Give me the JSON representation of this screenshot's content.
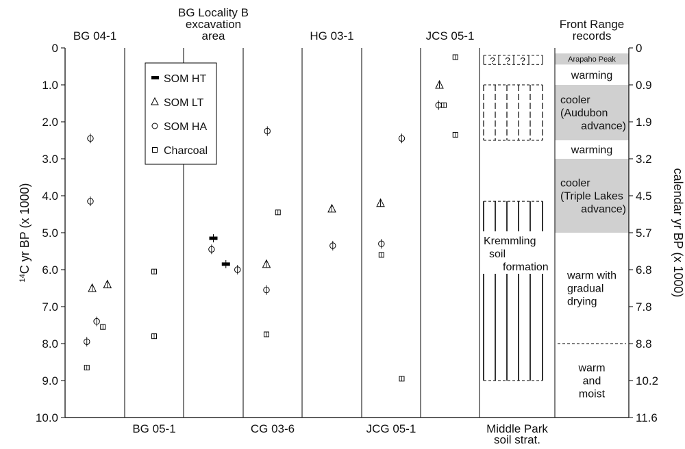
{
  "chart_data": {
    "type": "scatter",
    "ylabel_left": "14C yr BP (x 1000)",
    "ylabel_left_superscript": "14",
    "ylabel_left_main": "C yr BP (x 1000)",
    "ylabel_right": "calendar yr BP (x 1000)",
    "ylim": [
      0,
      10
    ],
    "y_inverted": true,
    "left_ticks": [
      "0",
      "1.0",
      "2.0",
      "3.0",
      "4.0",
      "5.0",
      "6.0",
      "7.0",
      "8.0",
      "9.0",
      "10.0"
    ],
    "right_ticks": [
      "0",
      "0.9",
      "1.9",
      "3.2",
      "4.5",
      "5.7",
      "6.8",
      "7.8",
      "8.8",
      "10.2",
      "11.6"
    ],
    "columns": [
      {
        "id": "bg04",
        "label": "BG 04-1",
        "label_position": "top"
      },
      {
        "id": "bg05",
        "label": "BG 05-1",
        "label_position": "bottom"
      },
      {
        "id": "bglocb",
        "label_lines": [
          "BG Locality B",
          "excavation",
          "area"
        ],
        "label_position": "top"
      },
      {
        "id": "cg03",
        "label": "CG 03-6",
        "label_position": "bottom"
      },
      {
        "id": "hg03",
        "label": "HG 03-1",
        "label_position": "top"
      },
      {
        "id": "jcg05",
        "label": "JCG 05-1",
        "label_position": "bottom"
      },
      {
        "id": "jcs05",
        "label": "JCS 05-1",
        "label_position": "top"
      },
      {
        "id": "middlepark",
        "label_lines": [
          "Middle Park",
          "soil strat."
        ],
        "label_position": "bottom"
      },
      {
        "id": "frontrange",
        "label_lines": [
          "Front Range",
          "records"
        ],
        "label_position": "top"
      }
    ],
    "legend": {
      "placement": "upper-left inside",
      "entries": [
        {
          "marker": "bar",
          "label": "SOM HT"
        },
        {
          "marker": "triangle",
          "label": "SOM LT"
        },
        {
          "marker": "circle",
          "label": "SOM HA"
        },
        {
          "marker": "square",
          "label": "Charcoal"
        }
      ]
    },
    "series": [
      {
        "name": "SOM HT",
        "marker": "bar",
        "points": [
          {
            "column": "bglocb",
            "offset": 0.0,
            "y": 5.15
          },
          {
            "column": "bglocb",
            "offset": 0.7,
            "y": 5.85
          }
        ]
      },
      {
        "name": "SOM LT",
        "marker": "triangle",
        "points": [
          {
            "column": "bg04",
            "offset": -0.15,
            "y": 6.5
          },
          {
            "column": "bg04",
            "offset": 0.7,
            "y": 6.4
          },
          {
            "column": "cg03",
            "offset": -0.35,
            "y": 5.85
          },
          {
            "column": "hg03",
            "offset": 0.0,
            "y": 4.35
          },
          {
            "column": "jcg05",
            "offset": -0.6,
            "y": 4.2
          },
          {
            "column": "jcs05",
            "offset": -0.6,
            "y": 1.0
          }
        ]
      },
      {
        "name": "SOM HA",
        "marker": "circle",
        "points": [
          {
            "column": "bg04",
            "offset": -0.25,
            "y": 2.45
          },
          {
            "column": "bg04",
            "offset": -0.25,
            "y": 4.15
          },
          {
            "column": "bg04",
            "offset": 0.1,
            "y": 7.4
          },
          {
            "column": "bg04",
            "offset": -0.45,
            "y": 7.95
          },
          {
            "column": "bglocb",
            "offset": -0.1,
            "y": 5.45
          },
          {
            "column": "bglocb",
            "offset": 1.35,
            "y": 6.0
          },
          {
            "column": "cg03",
            "offset": -0.3,
            "y": 2.25
          },
          {
            "column": "cg03",
            "offset": -0.35,
            "y": 6.55
          },
          {
            "column": "hg03",
            "offset": 0.05,
            "y": 5.35
          },
          {
            "column": "jcg05",
            "offset": -0.55,
            "y": 5.3
          },
          {
            "column": "jcg05",
            "offset": 0.6,
            "y": 2.45
          },
          {
            "column": "jcs05",
            "offset": -0.65,
            "y": 1.55
          }
        ]
      },
      {
        "name": "Charcoal",
        "marker": "square",
        "points": [
          {
            "column": "bg04",
            "offset": -0.45,
            "y": 8.65
          },
          {
            "column": "bg04",
            "offset": 0.45,
            "y": 7.55
          },
          {
            "column": "bg05",
            "offset": 0.0,
            "y": 6.05
          },
          {
            "column": "bg05",
            "offset": 0.0,
            "y": 7.8
          },
          {
            "column": "cg03",
            "offset": 0.3,
            "y": 4.45
          },
          {
            "column": "cg03",
            "offset": -0.35,
            "y": 7.75
          },
          {
            "column": "jcg05",
            "offset": -0.55,
            "y": 5.6
          },
          {
            "column": "jcg05",
            "offset": 0.6,
            "y": 8.95
          },
          {
            "column": "jcs05",
            "offset": 0.3,
            "y": 0.25
          },
          {
            "column": "jcs05",
            "offset": -0.35,
            "y": 1.55
          },
          {
            "column": "jcs05",
            "offset": 0.3,
            "y": 2.35
          }
        ]
      }
    ],
    "middle_park": {
      "uncertain_interval": {
        "y_top": 0.2,
        "y_bottom": 0.45,
        "label": "?"
      },
      "dashed_lines_y": [
        1.0,
        2.5,
        4.15,
        9.0
      ],
      "long_dashed_intervals": [
        {
          "y_top": 1.0,
          "y_bottom": 2.5,
          "pattern": "dashed"
        },
        {
          "y_top": 4.15,
          "y_bottom": 9.0,
          "pattern": "solid"
        }
      ],
      "soil_label": [
        "Kremmling",
        "soil",
        "formation"
      ]
    },
    "front_range": {
      "bands": [
        {
          "y_top": 0.15,
          "y_bottom": 0.45,
          "shaded": true,
          "lines": [
            "Arapaho Peak"
          ],
          "align": "center",
          "small": true
        },
        {
          "y_top": 0.45,
          "y_bottom": 1.0,
          "shaded": false,
          "lines": [
            "warming"
          ],
          "align": "center"
        },
        {
          "y_top": 1.0,
          "y_bottom": 2.5,
          "shaded": true,
          "lines": [
            "cooler",
            "(Audubon",
            "advance)"
          ],
          "align": "mixed"
        },
        {
          "y_top": 2.5,
          "y_bottom": 3.0,
          "shaded": false,
          "lines": [
            "warming"
          ],
          "align": "center"
        },
        {
          "y_top": 3.0,
          "y_bottom": 5.0,
          "shaded": true,
          "lines": [
            "cooler",
            "(Triple Lakes",
            "advance)"
          ],
          "align": "mixed"
        },
        {
          "y_top": 5.0,
          "y_bottom": 8.0,
          "shaded": false,
          "lines": [
            "warm with",
            "gradual",
            "drying"
          ],
          "align": "left"
        },
        {
          "y_top": 8.0,
          "y_bottom": 10.0,
          "shaded": false,
          "lines": [
            "warm",
            "and",
            "moist"
          ],
          "align": "center"
        }
      ],
      "dashed_boundary_y": 8.0
    },
    "colors": {
      "shade": "#d0d0d0",
      "line": "#000000"
    }
  }
}
